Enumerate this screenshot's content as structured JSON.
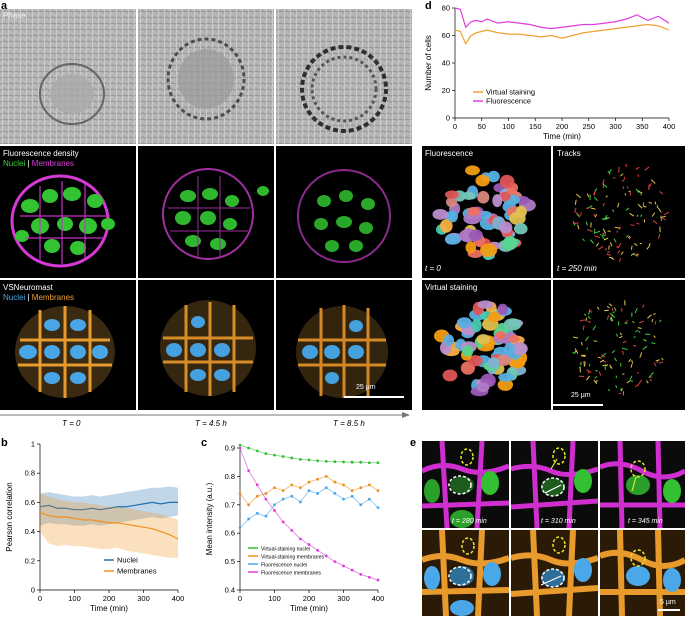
{
  "panel_a": {
    "letter": "a",
    "row_labels": {
      "phase": "Phase",
      "fluor_title": "Fluorescence density",
      "fluor_nuclei": "Nuclei",
      "fluor_sep": "|",
      "fluor_membranes": "Membranes",
      "vs_title": "VSNeuromast",
      "vs_nuclei": "Nuclei",
      "vs_sep": "|",
      "vs_membranes": "Membranes"
    },
    "scale_bar": "25 µm",
    "timepoints": [
      "T = 0",
      "T = 4.5 h",
      "T = 8.5 h"
    ]
  },
  "panel_d": {
    "letter": "d",
    "labels": {
      "fluorescence": "Fluorescence",
      "tracks": "Tracks",
      "t0": "t = 0",
      "t250": "t = 250 min",
      "virtual": "Virtual staining",
      "scale": "25 µm"
    }
  },
  "panel_b": {
    "letter": "b"
  },
  "panel_c": {
    "letter": "c"
  },
  "panel_e": {
    "letter": "e",
    "times": [
      "t = 280 min",
      "t = 310 min",
      "t = 345 min"
    ],
    "scale": "5 µm"
  },
  "colors": {
    "nuclei_green": "#3fd13f",
    "membranes_magenta": "#e03ce0",
    "nuclei_blue": "#4aa8e8",
    "membranes_orange": "#f0a030"
  },
  "chart_data": [
    {
      "id": "d",
      "type": "line",
      "xlabel": "Time (min)",
      "ylabel": "Number of cells",
      "xlim": [
        0,
        400
      ],
      "ylim": [
        0,
        80
      ],
      "xticks": [
        0,
        50,
        100,
        150,
        200,
        250,
        300,
        350,
        400
      ],
      "yticks": [
        0,
        20,
        40,
        60,
        80
      ],
      "legend_position": "bottom-left",
      "series": [
        {
          "name": "Virtual staining",
          "color": "#f0a030",
          "x": [
            0,
            10,
            20,
            30,
            40,
            50,
            60,
            80,
            100,
            120,
            140,
            160,
            180,
            200,
            220,
            240,
            260,
            280,
            300,
            320,
            340,
            360,
            380,
            400
          ],
          "y": [
            64,
            63,
            54,
            60,
            62,
            63,
            64,
            62,
            61,
            61,
            60,
            59,
            60,
            58,
            60,
            62,
            63,
            64,
            65,
            66,
            67,
            68,
            67,
            64
          ]
        },
        {
          "name": "Fluorescence",
          "color": "#e03ce0",
          "x": [
            0,
            10,
            20,
            30,
            40,
            50,
            60,
            80,
            100,
            120,
            140,
            160,
            180,
            200,
            220,
            240,
            260,
            280,
            300,
            320,
            340,
            360,
            380,
            400
          ],
          "y": [
            80,
            79,
            66,
            70,
            71,
            70,
            72,
            69,
            70,
            69,
            68,
            66,
            65,
            66,
            67,
            68,
            68,
            69,
            70,
            72,
            75,
            71,
            74,
            69
          ]
        }
      ]
    },
    {
      "id": "b",
      "type": "line",
      "xlabel": "Time (min)",
      "ylabel": "Pearson correlation",
      "xlim": [
        0,
        400
      ],
      "ylim": [
        0,
        1.0
      ],
      "xticks": [
        0,
        100,
        200,
        300,
        400
      ],
      "yticks": [
        0,
        0.2,
        0.4,
        0.6,
        0.8,
        1.0
      ],
      "legend_position": "bottom-right",
      "series": [
        {
          "name": "Nuclei",
          "color": "#1f6fb0",
          "x": [
            0,
            25,
            50,
            75,
            100,
            125,
            150,
            175,
            200,
            225,
            250,
            275,
            300,
            325,
            350,
            375,
            400
          ],
          "y": [
            0.57,
            0.58,
            0.56,
            0.56,
            0.55,
            0.55,
            0.56,
            0.55,
            0.56,
            0.57,
            0.57,
            0.58,
            0.59,
            0.6,
            0.59,
            0.6,
            0.6
          ],
          "lower": [
            0.44,
            0.46,
            0.45,
            0.45,
            0.44,
            0.44,
            0.45,
            0.44,
            0.45,
            0.46,
            0.47,
            0.48,
            0.49,
            0.5,
            0.49,
            0.5,
            0.51
          ],
          "upper": [
            0.66,
            0.67,
            0.66,
            0.65,
            0.64,
            0.64,
            0.65,
            0.64,
            0.65,
            0.66,
            0.67,
            0.68,
            0.69,
            0.7,
            0.7,
            0.71,
            0.7
          ]
        },
        {
          "name": "Membranes",
          "color": "#f0901a",
          "x": [
            0,
            25,
            50,
            75,
            100,
            125,
            150,
            175,
            200,
            225,
            250,
            275,
            300,
            325,
            350,
            375,
            400
          ],
          "y": [
            0.53,
            0.51,
            0.5,
            0.5,
            0.49,
            0.48,
            0.48,
            0.47,
            0.46,
            0.46,
            0.45,
            0.44,
            0.43,
            0.42,
            0.4,
            0.38,
            0.35
          ],
          "lower": [
            0.4,
            0.32,
            0.3,
            0.31,
            0.3,
            0.3,
            0.29,
            0.28,
            0.28,
            0.29,
            0.27,
            0.26,
            0.25,
            0.24,
            0.23,
            0.22,
            0.22
          ],
          "upper": [
            0.66,
            0.64,
            0.62,
            0.61,
            0.6,
            0.6,
            0.59,
            0.58,
            0.57,
            0.57,
            0.56,
            0.55,
            0.54,
            0.53,
            0.52,
            0.5,
            0.48
          ]
        }
      ]
    },
    {
      "id": "c",
      "type": "scatter",
      "xlabel": "Time (min)",
      "ylabel": "Mean intensity (a.u.)",
      "xlim": [
        0,
        400
      ],
      "ylim": [
        0.4,
        0.9
      ],
      "xticks": [
        0,
        100,
        200,
        300,
        400
      ],
      "yticks": [
        0.4,
        0.5,
        0.6,
        0.7,
        0.8,
        0.9
      ],
      "legend_position": "bottom-left",
      "series": [
        {
          "name": "Virtual-staining nuclei",
          "color": "#30c030",
          "x": [
            0,
            25,
            50,
            75,
            100,
            125,
            150,
            175,
            200,
            225,
            250,
            275,
            300,
            325,
            350,
            375,
            400
          ],
          "y": [
            0.91,
            0.9,
            0.89,
            0.88,
            0.875,
            0.87,
            0.865,
            0.86,
            0.858,
            0.855,
            0.853,
            0.852,
            0.851,
            0.85,
            0.85,
            0.848,
            0.848
          ]
        },
        {
          "name": "Virtual-staining membranes",
          "color": "#f0901a",
          "x": [
            0,
            25,
            50,
            75,
            100,
            125,
            150,
            175,
            200,
            225,
            250,
            275,
            300,
            325,
            350,
            375,
            400
          ],
          "y": [
            0.74,
            0.7,
            0.73,
            0.74,
            0.76,
            0.75,
            0.77,
            0.76,
            0.78,
            0.79,
            0.8,
            0.78,
            0.77,
            0.75,
            0.76,
            0.77,
            0.75
          ]
        },
        {
          "name": "Fluorescence nuclei",
          "color": "#4aa8e8",
          "x": [
            0,
            25,
            50,
            75,
            100,
            125,
            150,
            175,
            200,
            225,
            250,
            275,
            300,
            325,
            350,
            375,
            400
          ],
          "y": [
            0.62,
            0.65,
            0.67,
            0.66,
            0.7,
            0.72,
            0.73,
            0.71,
            0.75,
            0.74,
            0.76,
            0.74,
            0.72,
            0.73,
            0.7,
            0.72,
            0.69
          ]
        },
        {
          "name": "Fluorescence membranes",
          "color": "#e03ce0",
          "x": [
            0,
            25,
            50,
            75,
            100,
            125,
            150,
            175,
            200,
            225,
            250,
            275,
            300,
            325,
            350,
            375,
            400
          ],
          "y": [
            0.9,
            0.82,
            0.77,
            0.72,
            0.68,
            0.64,
            0.61,
            0.58,
            0.56,
            0.54,
            0.52,
            0.5,
            0.485,
            0.47,
            0.455,
            0.445,
            0.435
          ]
        }
      ]
    }
  ]
}
